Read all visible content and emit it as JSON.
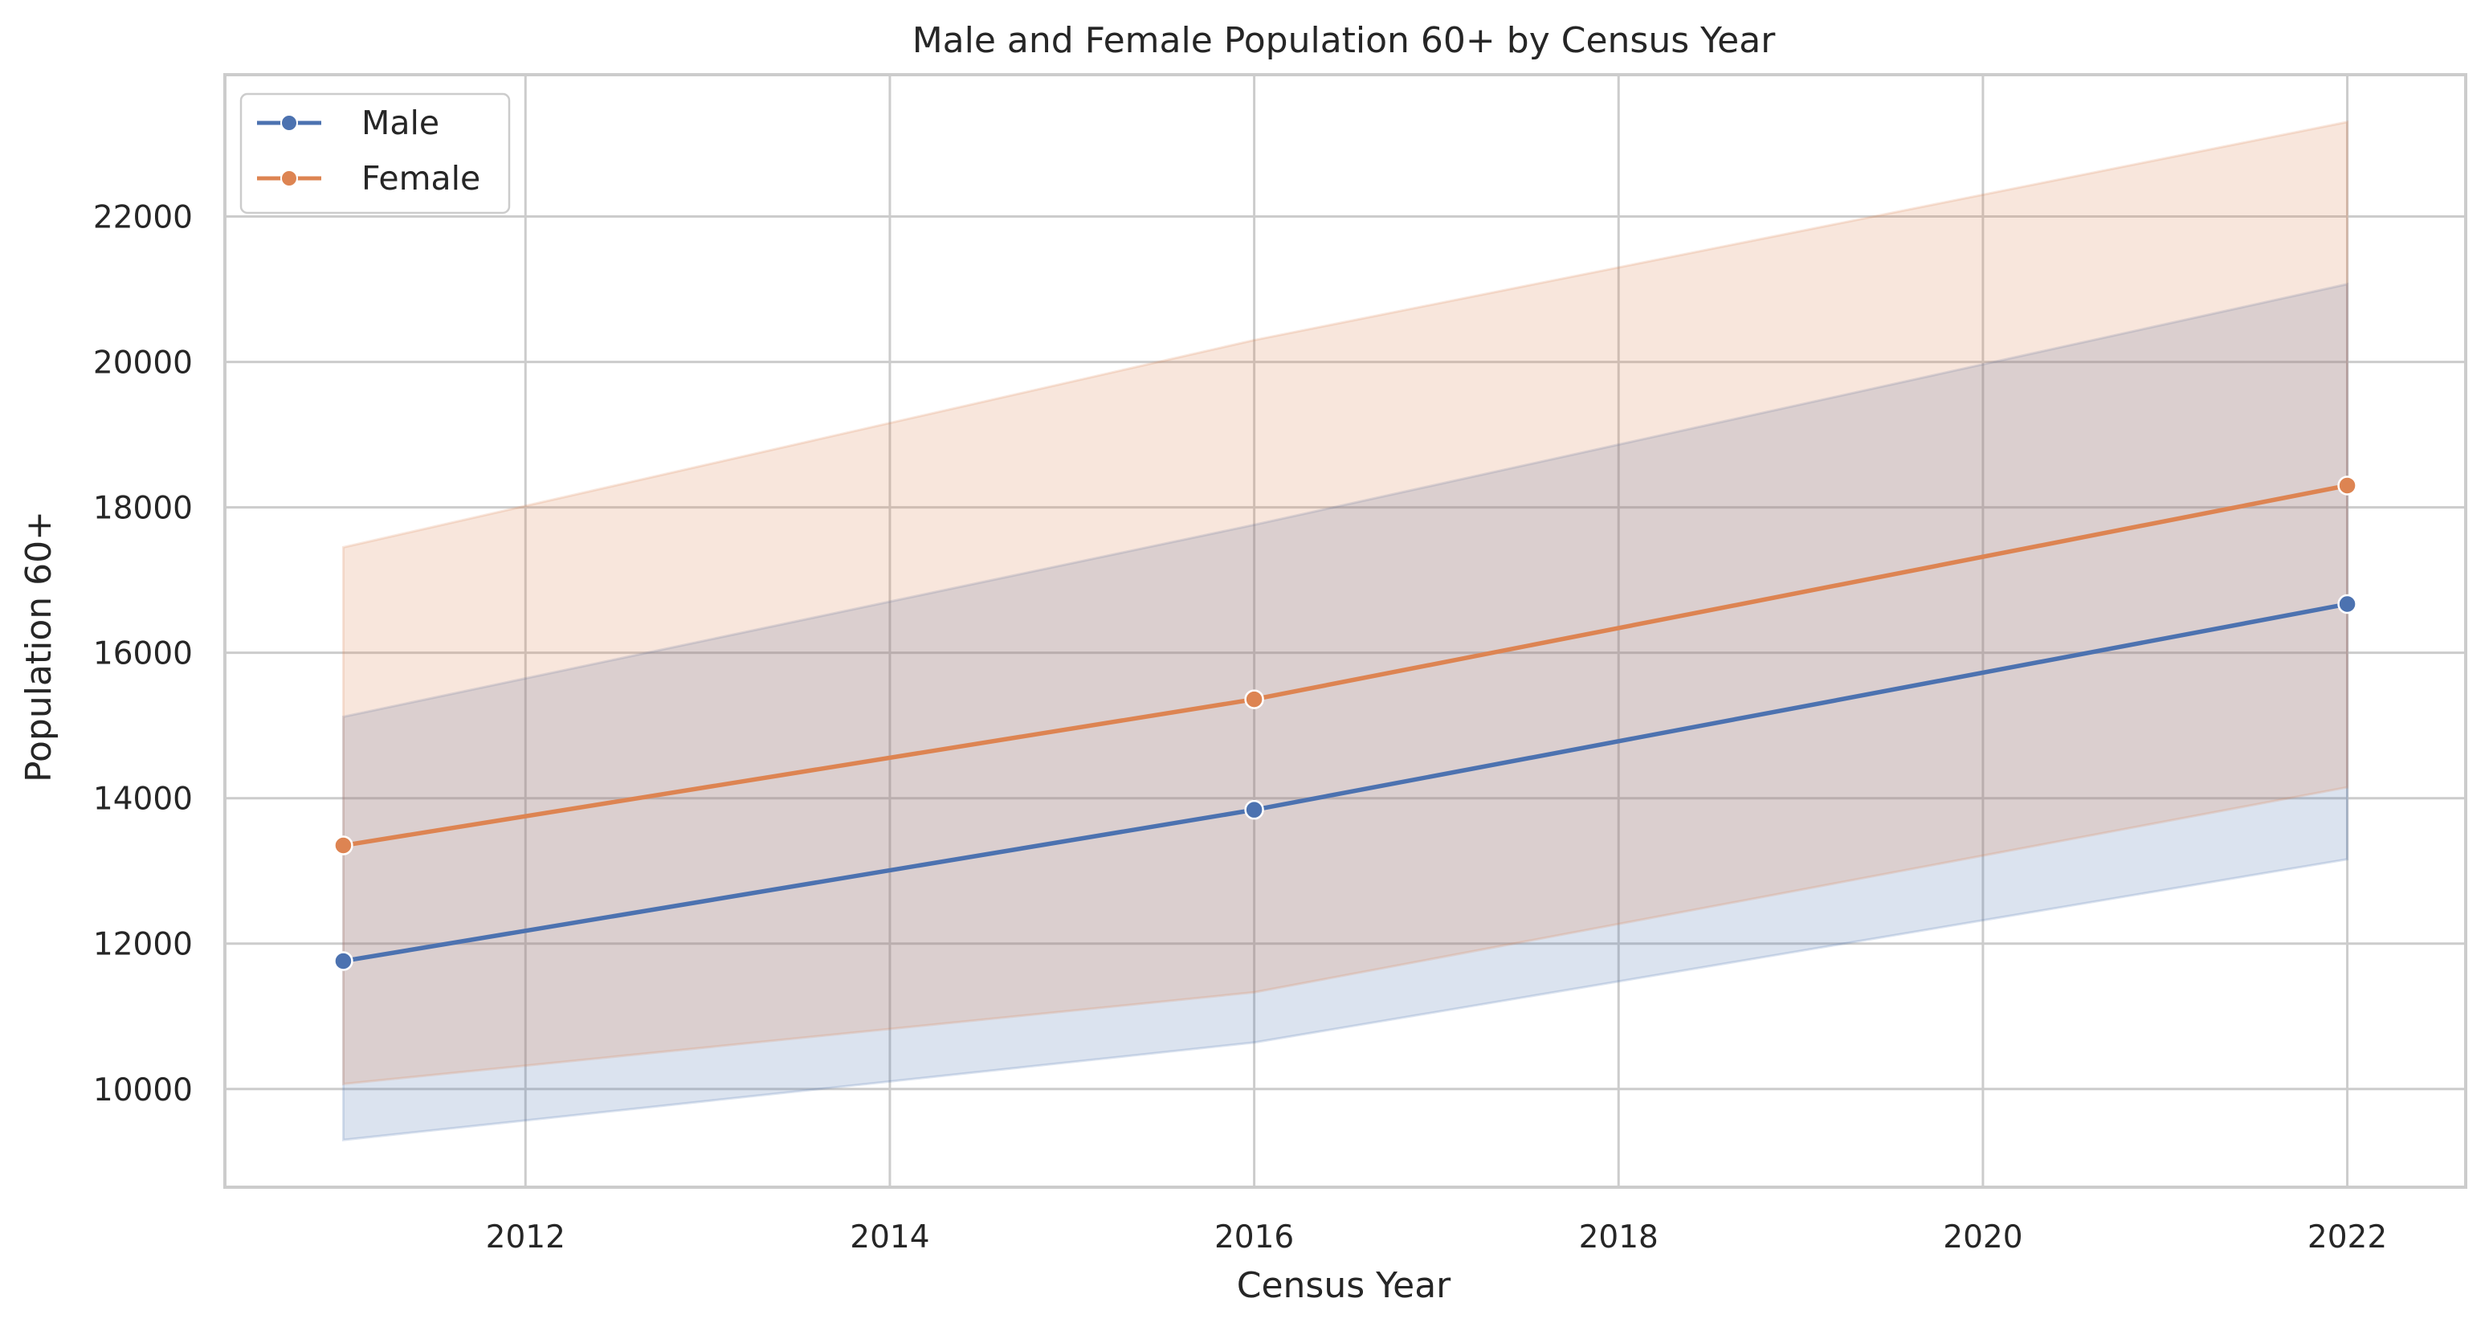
{
  "chart_data": {
    "type": "line",
    "title": "Male and Female Population 60+ by Census Year",
    "xlabel": "Census Year",
    "ylabel": "Population 60+",
    "x": [
      2011,
      2016,
      2022
    ],
    "xlim": [
      2010.35,
      2022.65
    ],
    "ylim": [
      8650,
      23950
    ],
    "xticks": [
      2012,
      2014,
      2016,
      2018,
      2020,
      2022
    ],
    "xtick_labels": [
      "2012",
      "2014",
      "2016",
      "2018",
      "2020",
      "2022"
    ],
    "yticks": [
      10000,
      12000,
      14000,
      16000,
      18000,
      20000,
      22000
    ],
    "ytick_labels": [
      "10000",
      "12000",
      "14000",
      "16000",
      "18000",
      "20000",
      "22000"
    ],
    "grid": true,
    "legend_position": "top-left",
    "series": [
      {
        "name": "Male",
        "color": "#4c72b0",
        "values": [
          11760,
          13840,
          16670
        ],
        "ci_lower": [
          9300,
          10640,
          13160
        ],
        "ci_upper": [
          15120,
          17760,
          21070
        ],
        "marker": "circle"
      },
      {
        "name": "Female",
        "color": "#dd8452",
        "values": [
          13350,
          15360,
          18300
        ],
        "ci_lower": [
          10070,
          11330,
          14150
        ],
        "ci_upper": [
          17450,
          20300,
          23300
        ],
        "marker": "circle"
      }
    ]
  }
}
